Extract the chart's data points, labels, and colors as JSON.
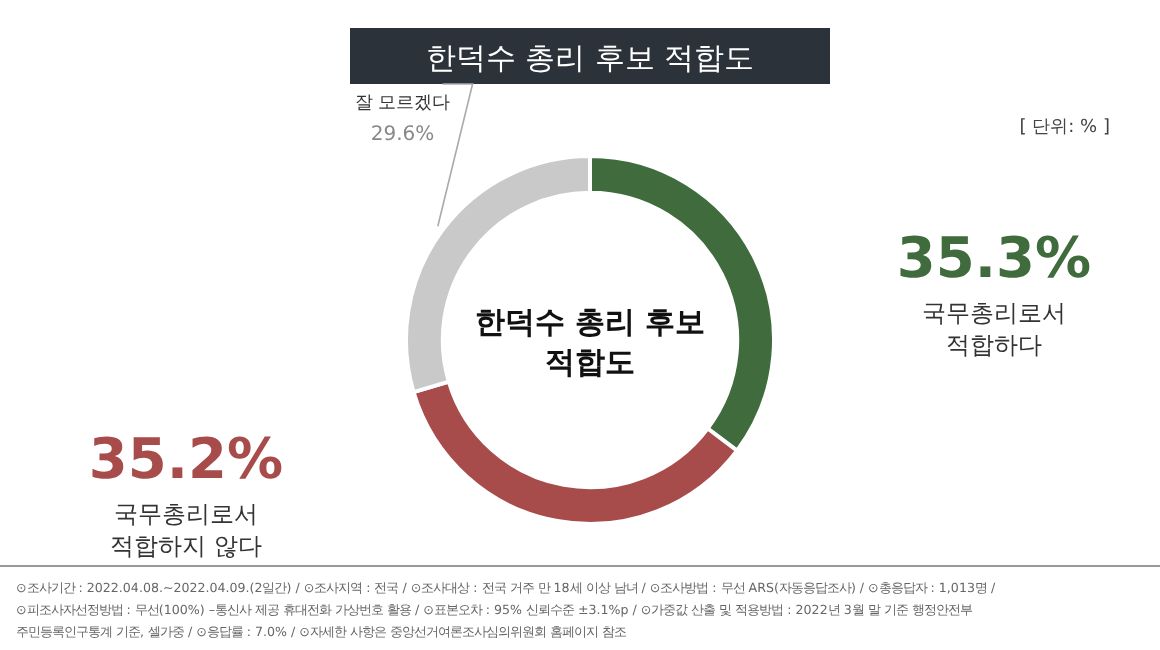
{
  "chart_data": {
    "type": "donut",
    "title": "한덕수 총리 후보 적합도",
    "categories": [
      "국무총리로서 적합하다",
      "국무총리로서 적합하지 않다",
      "잘 모르겠다"
    ],
    "values": [
      35.3,
      35.2,
      29.6
    ],
    "colors": [
      "#3f6b3d",
      "#a84b4b",
      "#c9c9c9"
    ],
    "value_labels": [
      "35.3%",
      "35.2%",
      "29.6%"
    ],
    "annotations": [
      "[ 단위: % ]",
      "한덕수 총리 후보 적합도",
      "⊙조사기간 : 2022.04.08.~2022.04.09.(2일간) / ⊙조사지역 : 전국 / ⊙조사대상 : 전국 거주 만 18세 이상 남녀 / ⊙조사방법 : 무선 ARS(자동응답조사) / ⊙총응답자 : 1,013명 /",
      "⊙피조사자선정방법 : 무선(100%) –통신사 제공 휴대전화 가상번호 활용 / ⊙표본오차 : 95% 신뢰수준 ±3.1%p / ⊙가중값 산출 및 적용방법 : 2022년 3월 말 기준 행정안전부",
      "주민등록인구통계 기준, 셀가중 / ⊙응답률 : 7.0% / ⊙자세한 사항은 중앙선거여론조사심의위원회 홈페이지 참조"
    ]
  }
}
